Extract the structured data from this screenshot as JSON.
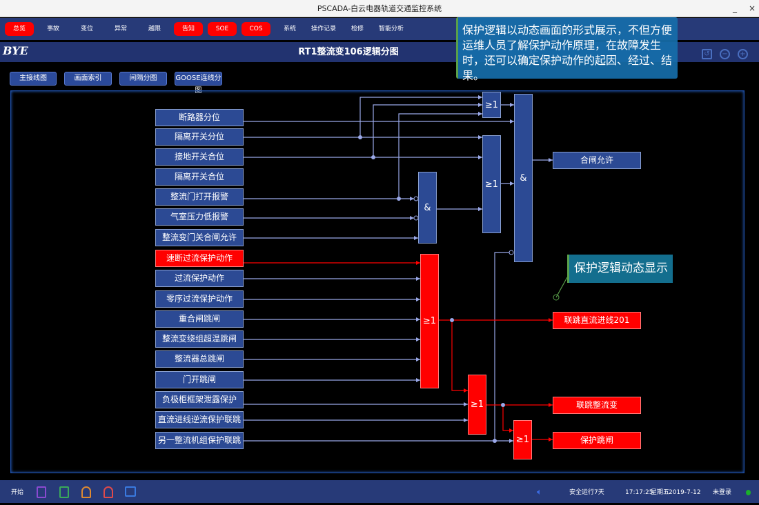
{
  "window": {
    "title": "PSCADA-白云电器轨道交通监控系统",
    "minimize": "_",
    "close": "×"
  },
  "nav": [
    {
      "label": "总览",
      "alert": true
    },
    {
      "label": "事故",
      "alert": false
    },
    {
      "label": "变位",
      "alert": false
    },
    {
      "label": "异常",
      "alert": false
    },
    {
      "label": "越限",
      "alert": false
    },
    {
      "label": "告知",
      "alert": true
    },
    {
      "label": "SOE",
      "alert": true
    },
    {
      "label": "COS",
      "alert": true
    },
    {
      "label": "系统",
      "alert": false
    },
    {
      "label": "操作记录",
      "alert": false
    },
    {
      "label": "检修",
      "alert": false
    },
    {
      "label": "智能分析",
      "alert": false
    }
  ],
  "header": {
    "logo": "BYE",
    "title": "RT1整流变106逻辑分图"
  },
  "subnav": [
    "主接线图",
    "画面索引",
    "间隔分图",
    "GOOSE连线分图"
  ],
  "tooltip": "保护逻辑以动态画面的形式展示，不但方便运维人员了解保护动作原理，在故障发生时，还可以确定保护动作的起因、经过、结果。",
  "callout": "保护逻辑动态显示",
  "inputs": [
    {
      "label": "断路器分位",
      "active": false
    },
    {
      "label": "隔离开关分位",
      "active": false
    },
    {
      "label": "接地开关合位",
      "active": false
    },
    {
      "label": "隔离开关合位",
      "active": false
    },
    {
      "label": "整流门打开报警",
      "active": false
    },
    {
      "label": "气室压力低报警",
      "active": false
    },
    {
      "label": "整流变门关合闸允许",
      "active": false
    },
    {
      "label": "速断过流保护动作",
      "active": true
    },
    {
      "label": "过流保护动作",
      "active": false
    },
    {
      "label": "零序过流保护动作",
      "active": false
    },
    {
      "label": "重合闸跳闸",
      "active": false
    },
    {
      "label": "整流变绕组超温跳闸",
      "active": false
    },
    {
      "label": "整流器总跳闸",
      "active": false
    },
    {
      "label": "门开跳闸",
      "active": false
    },
    {
      "label": "负极柜框架泄露保护",
      "active": false
    },
    {
      "label": "直流进线逆流保护联跳",
      "active": false
    },
    {
      "label": "另一整流机组保护联跳",
      "active": false
    }
  ],
  "gates": [
    {
      "label": "≥1",
      "active": false
    },
    {
      "label": "≥1",
      "active": false
    },
    {
      "label": "&",
      "active": false
    },
    {
      "label": "&",
      "active": false
    },
    {
      "label": "≥1",
      "active": true
    },
    {
      "label": "≥1",
      "active": true
    },
    {
      "label": "≥1",
      "active": true
    }
  ],
  "outputs": [
    {
      "label": "合闸允许",
      "active": false
    },
    {
      "label": "联跳直流进线201",
      "active": true
    },
    {
      "label": "联跳整流变",
      "active": true
    },
    {
      "label": "保护跳闸",
      "active": true
    }
  ],
  "taskbar": {
    "start": "开始",
    "safe": "安全运行7天",
    "time": "17:17:25",
    "weekday": "星期五",
    "date": "2019-7-12",
    "login": "未登录"
  },
  "colors": {
    "active": "#ff0000",
    "normal": "#2c4a94",
    "line": "#9aa8e8"
  }
}
